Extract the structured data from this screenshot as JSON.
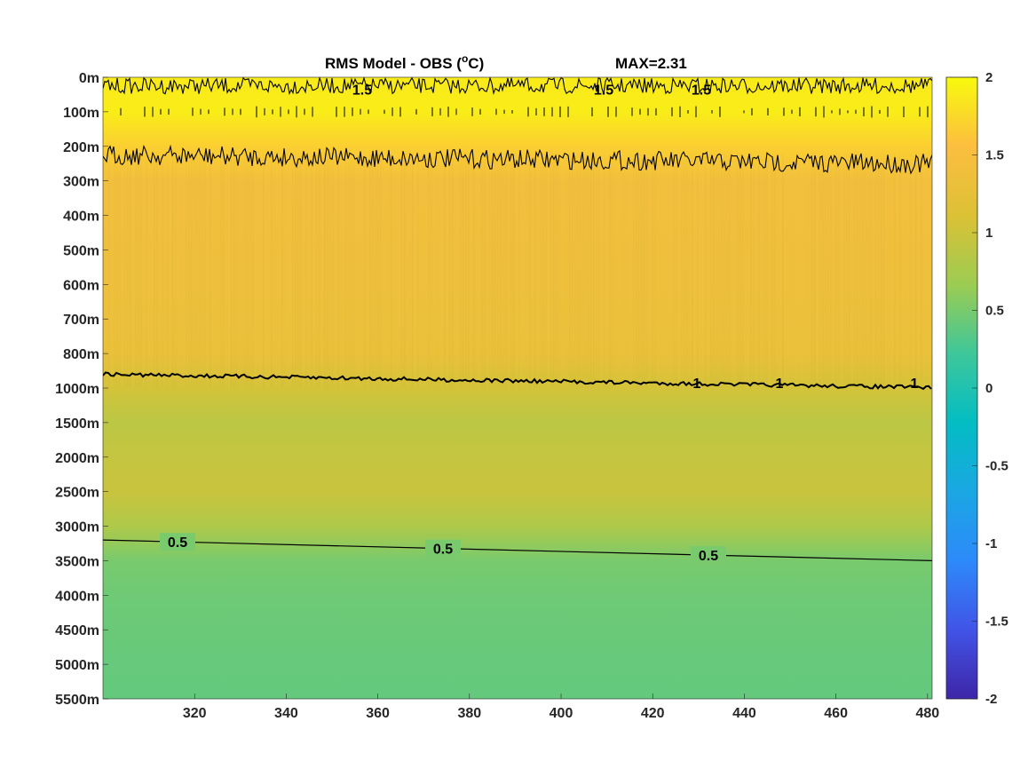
{
  "chart_data": {
    "type": "heatmap",
    "title": "RMS Model - OBS (",
    "title_degree": "o",
    "title_unit": "C)",
    "max_label": "MAX=2.31",
    "xlabel": "",
    "ylabel": "",
    "xlim": [
      300,
      481
    ],
    "xticks": [
      320,
      340,
      360,
      380,
      400,
      420,
      440,
      460,
      480
    ],
    "yticks": [
      "0m",
      "100m",
      "200m",
      "300m",
      "400m",
      "500m",
      "600m",
      "700m",
      "800m",
      "1000m",
      "1500m",
      "2000m",
      "2500m",
      "3000m",
      "3500m",
      "4000m",
      "4500m",
      "5000m",
      "5500m"
    ],
    "colormap": "parula",
    "clim": [
      -2,
      2
    ],
    "colorbar_ticks": [
      "2",
      "1.5",
      "1",
      "0.5",
      "0",
      "-0.5",
      "-1",
      "-1.5",
      "-2"
    ],
    "depth_profile": [
      {
        "depth": "0m",
        "value": 1.88
      },
      {
        "depth": "100m",
        "value": 1.9
      },
      {
        "depth": "200m",
        "value": 1.68
      },
      {
        "depth": "300m",
        "value": 1.42
      },
      {
        "depth": "400m",
        "value": 1.4
      },
      {
        "depth": "500m",
        "value": 1.38
      },
      {
        "depth": "600m",
        "value": 1.36
      },
      {
        "depth": "700m",
        "value": 1.33
      },
      {
        "depth": "800m",
        "value": 1.3
      },
      {
        "depth": "1000m",
        "value": 1.05
      },
      {
        "depth": "1500m",
        "value": 0.88
      },
      {
        "depth": "2000m",
        "value": 0.95
      },
      {
        "depth": "2500m",
        "value": 0.98
      },
      {
        "depth": "3000m",
        "value": 0.8
      },
      {
        "depth": "3500m",
        "value": 0.5
      },
      {
        "depth": "4000m",
        "value": 0.45
      },
      {
        "depth": "4500m",
        "value": 0.43
      },
      {
        "depth": "5000m",
        "value": 0.41
      },
      {
        "depth": "5500m",
        "value": 0.4
      }
    ],
    "contours": [
      {
        "level": "1.5",
        "depth_start": "200m",
        "depth_end": "300m",
        "labels": [
          "1.5",
          "1.5",
          "1.5"
        ]
      },
      {
        "level": "1",
        "depth_start": "~900m",
        "depth_end": "~1000m",
        "labels": [
          "1",
          "1",
          "1"
        ]
      },
      {
        "level": "0.5",
        "depth_start": "~3200m",
        "depth_end": "~3500m",
        "labels": [
          "0.5",
          "0.5",
          "0.5"
        ]
      }
    ],
    "colors": {
      "parula_stops": [
        "#3e26a8",
        "#4154e7",
        "#2d8afa",
        "#1aa7e3",
        "#03bdc3",
        "#3ec79a",
        "#9ccc52",
        "#dcc135",
        "#fcbe3f",
        "#f8fa0d"
      ],
      "contour": "#000000"
    }
  }
}
